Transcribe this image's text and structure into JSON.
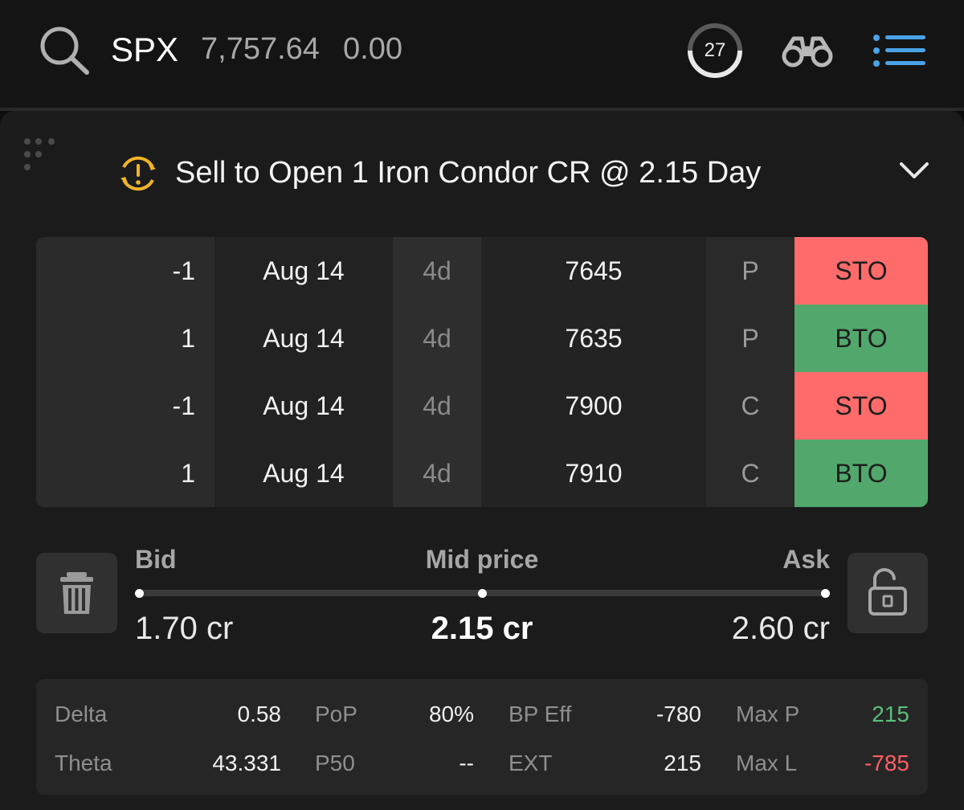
{
  "header": {
    "symbol": "SPX",
    "price": "7,757.64",
    "change": "0.00",
    "dte_badge": "27",
    "icons": [
      "search-icon",
      "binoculars-icon",
      "list-menu-icon"
    ]
  },
  "order": {
    "status_icon": "warning-refresh-icon",
    "description": "Sell to Open 1 Iron Condor CR @ 2.15 Day"
  },
  "legs": [
    {
      "qty": "-1",
      "expiration": "Aug 14",
      "dte": "4d",
      "strike": "7645",
      "type": "P",
      "action": "STO"
    },
    {
      "qty": "1",
      "expiration": "Aug 14",
      "dte": "4d",
      "strike": "7635",
      "type": "P",
      "action": "BTO"
    },
    {
      "qty": "-1",
      "expiration": "Aug 14",
      "dte": "4d",
      "strike": "7900",
      "type": "C",
      "action": "STO"
    },
    {
      "qty": "1",
      "expiration": "Aug 14",
      "dte": "4d",
      "strike": "7910",
      "type": "C",
      "action": "BTO"
    }
  ],
  "pricing": {
    "bid_label": "Bid",
    "mid_label": "Mid price",
    "ask_label": "Ask",
    "bid_value": "1.70 cr",
    "mid_value": "2.15 cr",
    "ask_value": "2.60 cr"
  },
  "stats": {
    "delta_label": "Delta",
    "delta_value": "0.58",
    "theta_label": "Theta",
    "theta_value": "43.331",
    "pop_label": "PoP",
    "pop_value": "80%",
    "p50_label": "P50",
    "p50_value": "--",
    "bpeff_label": "BP Eff",
    "bpeff_value": "-780",
    "ext_label": "EXT",
    "ext_value": "215",
    "maxp_label": "Max P",
    "maxp_value": "215",
    "maxl_label": "Max L",
    "maxl_value": "-785"
  },
  "colors": {
    "sto": "#ff6b6b",
    "bto": "#52a86c",
    "profit": "#5bbf7a",
    "loss": "#ff5f66",
    "accent_menu": "#4aa3e8",
    "warning": "#f0b429"
  }
}
